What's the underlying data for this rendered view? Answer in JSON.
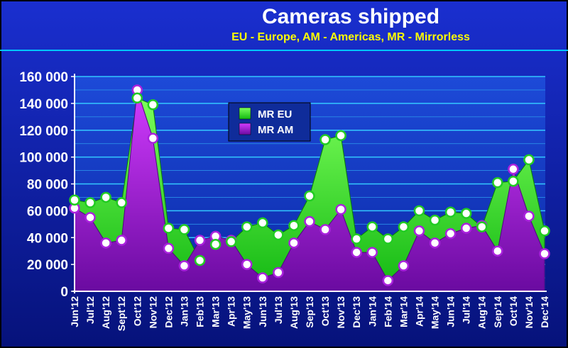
{
  "chart_data": {
    "type": "area",
    "title": "Cameras shipped",
    "subtitle": "EU - Europe, AM - Americas, MR - Mirrorless",
    "xlabel": "",
    "ylabel": "",
    "ylim": [
      0,
      160000
    ],
    "yticks": [
      0,
      20000,
      40000,
      60000,
      80000,
      100000,
      120000,
      140000,
      160000
    ],
    "ytick_labels": [
      "0",
      "20 000",
      "40 000",
      "60 000",
      "80 000",
      "100 000",
      "120 000",
      "140 000",
      "160 000"
    ],
    "grid": true,
    "legend_position": "top-center",
    "categories": [
      "Jun'12",
      "Jul'12",
      "Aug'12",
      "Sept'12",
      "Oct'12",
      "Nov'12",
      "Dec'12",
      "Jan'13",
      "Feb'13",
      "Mar'13",
      "Apr'13",
      "May'13",
      "Jun'13",
      "Jul'13",
      "Aug'13",
      "Sep'13",
      "Oct'13",
      "Nov'13",
      "Dec'13",
      "Jan'14",
      "Feb'14",
      "Mar'14",
      "Apr'14",
      "May'14",
      "Jun'14",
      "Jul'14",
      "Aug'14",
      "Sep'14",
      "Oct'14",
      "Nov'14",
      "Dec'14"
    ],
    "series": [
      {
        "name": "MR EU",
        "color": "#22dd22",
        "values": [
          68000,
          66000,
          70000,
          66000,
          144000,
          139000,
          47000,
          46000,
          23000,
          35000,
          37000,
          48000,
          51000,
          42000,
          49000,
          71000,
          113000,
          116000,
          39000,
          48000,
          39000,
          48000,
          60000,
          53000,
          59000,
          58000,
          48000,
          81000,
          82000,
          98000,
          45000
        ]
      },
      {
        "name": "MR AM",
        "color": "#aa22dd",
        "values": [
          62000,
          55000,
          36000,
          38000,
          150000,
          114000,
          32000,
          19000,
          38000,
          41000,
          38000,
          20000,
          10000,
          14000,
          36000,
          52000,
          46000,
          61000,
          29000,
          29000,
          8000,
          19000,
          45000,
          36000,
          43000,
          47000,
          49000,
          30000,
          91000,
          56000,
          28000
        ]
      }
    ]
  }
}
